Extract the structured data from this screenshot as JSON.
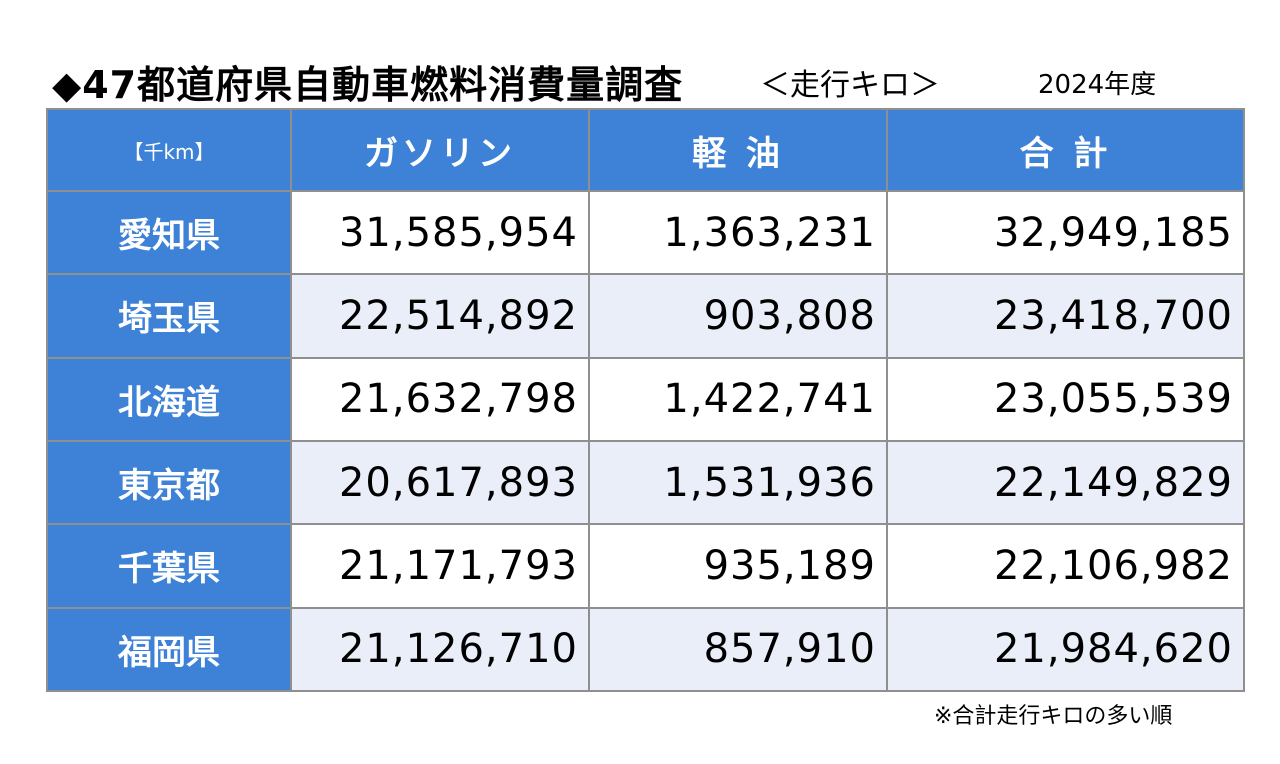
{
  "title": "◆47都道府県自動車燃料消費量調査",
  "subtitle": "＜走行キロ＞",
  "year": "2024年度",
  "footnote": "※合計走行キロの多い順",
  "chart_data": {
    "type": "table",
    "unit": "【千km】",
    "columns": [
      "ガソリン",
      "軽 油",
      "合 計"
    ],
    "rows": [
      {
        "label": "愛知県",
        "values": [
          "31,585,954",
          "1,363,231",
          "32,949,185"
        ]
      },
      {
        "label": "埼玉県",
        "values": [
          "22,514,892",
          "903,808",
          "23,418,700"
        ]
      },
      {
        "label": "北海道",
        "values": [
          "21,632,798",
          "1,422,741",
          "23,055,539"
        ]
      },
      {
        "label": "東京都",
        "values": [
          "20,617,893",
          "1,531,936",
          "22,149,829"
        ]
      },
      {
        "label": "千葉県",
        "values": [
          "21,171,793",
          "935,189",
          "22,106,982"
        ]
      },
      {
        "label": "福岡県",
        "values": [
          "21,126,710",
          "857,910",
          "21,984,620"
        ]
      }
    ],
    "header_color": "#3d82d6",
    "alt_row_color": "#e9eef8",
    "border_color": "#8f8f8f"
  }
}
